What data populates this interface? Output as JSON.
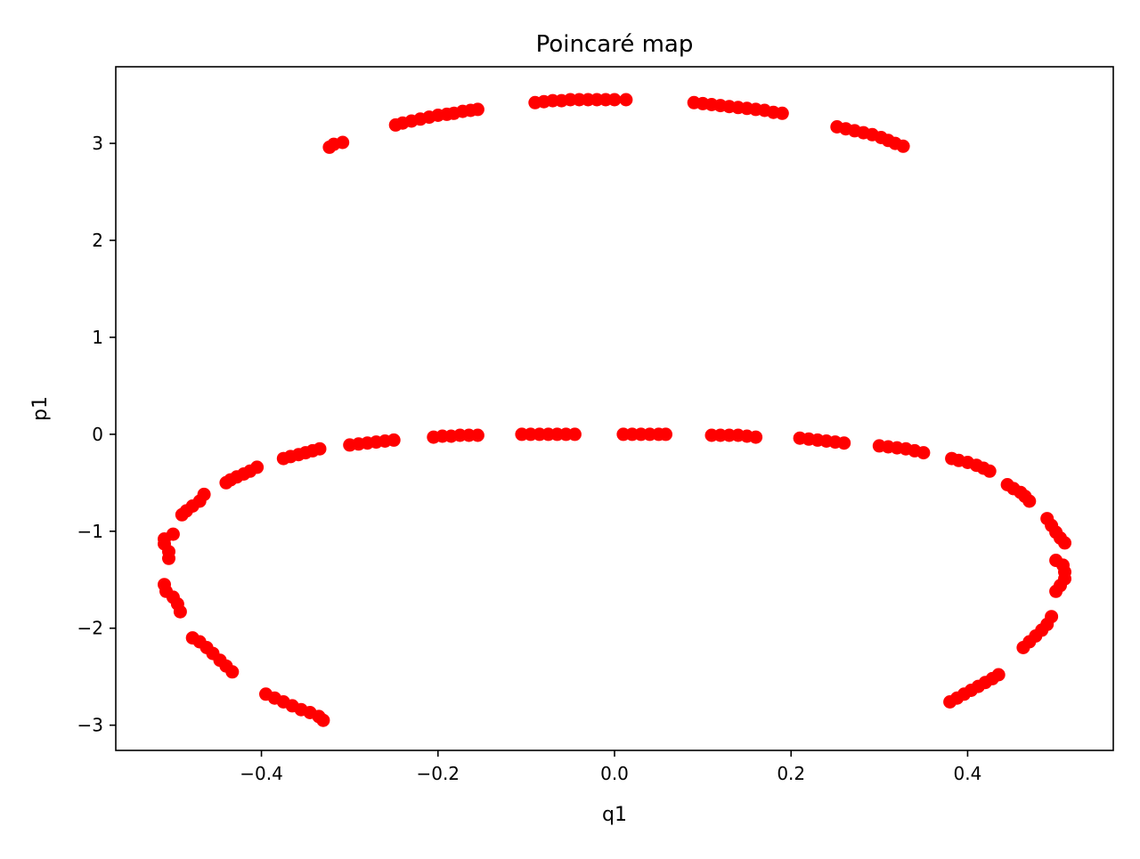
{
  "chart_data": {
    "type": "scatter",
    "title": "Poincaré map",
    "xlabel": "q1",
    "ylabel": "p1",
    "xlim": [
      -0.565,
      0.565
    ],
    "ylim": [
      -3.26,
      3.79
    ],
    "x_ticks": [
      -0.4,
      -0.2,
      0.0,
      0.2,
      0.4
    ],
    "x_tick_labels": [
      "−0.4",
      "−0.2",
      "0.0",
      "0.2",
      "0.4"
    ],
    "y_ticks": [
      -3,
      -2,
      -1,
      0,
      1,
      2,
      3
    ],
    "y_tick_labels": [
      "−3",
      "−2",
      "−1",
      "0",
      "1",
      "2",
      "3"
    ],
    "grid": false,
    "marker_color": "#ff0000",
    "series": [
      {
        "x": [
          -0.323,
          -0.318,
          -0.308,
          -0.248,
          -0.24,
          -0.23,
          -0.22,
          -0.21,
          -0.2,
          -0.19,
          -0.182,
          -0.172,
          -0.163,
          -0.155,
          -0.09,
          -0.08,
          -0.07,
          -0.06,
          -0.05,
          -0.04,
          -0.03,
          -0.02,
          -0.01,
          0.0,
          0.013,
          0.09,
          0.1,
          0.11,
          0.12,
          0.13,
          0.14,
          0.15,
          0.16,
          0.17,
          0.18,
          0.19,
          0.252,
          0.262,
          0.272,
          0.282,
          0.292,
          0.302,
          0.31,
          0.318,
          0.327,
          -0.3,
          -0.29,
          -0.28,
          -0.27,
          -0.26,
          -0.25,
          -0.205,
          -0.195,
          -0.185,
          -0.175,
          -0.165,
          -0.155,
          -0.105,
          -0.095,
          -0.085,
          -0.075,
          -0.065,
          -0.055,
          -0.045,
          0.01,
          0.02,
          0.03,
          0.04,
          0.05,
          0.058,
          0.11,
          0.12,
          0.13,
          0.14,
          0.15,
          0.16,
          0.21,
          0.22,
          0.23,
          0.24,
          0.25,
          0.26,
          0.3,
          0.31,
          0.32,
          0.33,
          0.34,
          0.35,
          -0.375,
          -0.367,
          -0.358,
          -0.35,
          -0.342,
          -0.334,
          -0.44,
          -0.435,
          -0.428,
          -0.42,
          -0.413,
          -0.405,
          -0.49,
          -0.485,
          -0.478,
          -0.47,
          -0.465,
          -0.505,
          -0.505,
          -0.51,
          -0.51,
          -0.5,
          -0.51,
          -0.508,
          -0.5,
          -0.495,
          -0.492,
          -0.478,
          -0.47,
          -0.462,
          -0.455,
          -0.447,
          -0.44,
          -0.433,
          -0.395,
          -0.385,
          -0.375,
          -0.365,
          -0.355,
          -0.345,
          -0.335,
          -0.33,
          0.38,
          0.388,
          0.396,
          0.404,
          0.412,
          0.42,
          0.428,
          0.435,
          0.463,
          0.47,
          0.477,
          0.484,
          0.49,
          0.495,
          0.5,
          0.505,
          0.51,
          0.51,
          0.508,
          0.5,
          0.49,
          0.495,
          0.5,
          0.505,
          0.51,
          0.445,
          0.452,
          0.46,
          0.465,
          0.47,
          0.382,
          0.39,
          0.4,
          0.41,
          0.418,
          0.425
        ],
        "y": [
          2.96,
          2.99,
          3.01,
          3.19,
          3.21,
          3.23,
          3.25,
          3.27,
          3.29,
          3.3,
          3.31,
          3.33,
          3.34,
          3.35,
          3.42,
          3.43,
          3.44,
          3.44,
          3.45,
          3.45,
          3.45,
          3.45,
          3.45,
          3.45,
          3.45,
          3.42,
          3.41,
          3.4,
          3.39,
          3.38,
          3.37,
          3.36,
          3.35,
          3.34,
          3.32,
          3.31,
          3.17,
          3.15,
          3.13,
          3.11,
          3.09,
          3.06,
          3.03,
          3.0,
          2.97,
          -0.11,
          -0.1,
          -0.09,
          -0.08,
          -0.07,
          -0.06,
          -0.03,
          -0.02,
          -0.02,
          -0.01,
          -0.01,
          -0.01,
          0.0,
          0.0,
          0.0,
          0.0,
          0.0,
          0.0,
          0.0,
          0.0,
          0.0,
          0.0,
          0.0,
          0.0,
          0.0,
          -0.01,
          -0.01,
          -0.01,
          -0.01,
          -0.02,
          -0.03,
          -0.04,
          -0.05,
          -0.06,
          -0.07,
          -0.08,
          -0.09,
          -0.12,
          -0.13,
          -0.14,
          -0.15,
          -0.17,
          -0.19,
          -0.25,
          -0.23,
          -0.21,
          -0.19,
          -0.17,
          -0.15,
          -0.5,
          -0.47,
          -0.44,
          -0.41,
          -0.38,
          -0.34,
          -0.83,
          -0.79,
          -0.74,
          -0.69,
          -0.62,
          -1.28,
          -1.21,
          -1.13,
          -1.08,
          -1.03,
          -1.55,
          -1.62,
          -1.68,
          -1.75,
          -1.83,
          -2.1,
          -2.14,
          -2.2,
          -2.26,
          -2.33,
          -2.39,
          -2.45,
          -2.68,
          -2.72,
          -2.76,
          -2.8,
          -2.84,
          -2.87,
          -2.91,
          -2.95,
          -2.76,
          -2.72,
          -2.68,
          -2.64,
          -2.6,
          -2.56,
          -2.52,
          -2.48,
          -2.2,
          -2.14,
          -2.08,
          -2.02,
          -1.96,
          -1.88,
          -1.62,
          -1.56,
          -1.49,
          -1.42,
          -1.35,
          -1.3,
          -0.87,
          -0.94,
          -1.01,
          -1.07,
          -1.12,
          -0.52,
          -0.56,
          -0.6,
          -0.64,
          -0.69,
          -0.25,
          -0.27,
          -0.29,
          -0.32,
          -0.35,
          -0.38
        ]
      }
    ]
  }
}
